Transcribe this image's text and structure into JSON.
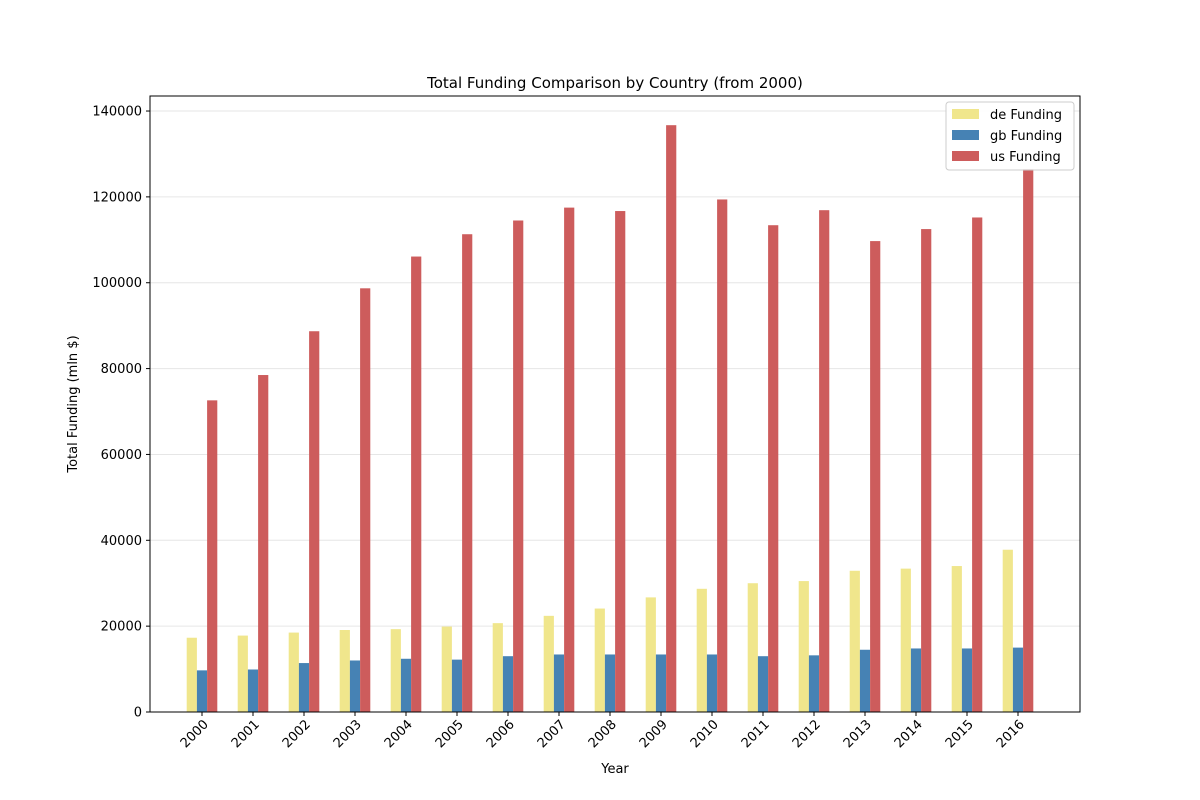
{
  "chart_data": {
    "type": "bar",
    "title": "Total Funding Comparison by Country (from 2000)",
    "xlabel": "Year",
    "ylabel": "Total Funding (mln $)",
    "categories": [
      "2000",
      "2001",
      "2002",
      "2003",
      "2004",
      "2005",
      "2006",
      "2007",
      "2008",
      "2009",
      "2010",
      "2011",
      "2012",
      "2013",
      "2014",
      "2015",
      "2016"
    ],
    "ylim": [
      0,
      143500
    ],
    "yticks": [
      0,
      20000,
      40000,
      60000,
      80000,
      100000,
      120000,
      140000
    ],
    "grid": "y",
    "legend_position": "top-right",
    "series": [
      {
        "name": "de Funding",
        "color": "#f0e68c",
        "values": [
          17300,
          17800,
          18500,
          19100,
          19300,
          19900,
          20700,
          22400,
          24100,
          26700,
          28700,
          30000,
          30500,
          32900,
          33400,
          34000,
          37800
        ]
      },
      {
        "name": "gb Funding",
        "color": "#4682b4",
        "values": [
          9700,
          9900,
          11400,
          12000,
          12400,
          12200,
          13000,
          13400,
          13400,
          13400,
          13400,
          13000,
          13200,
          14500,
          14800,
          14800,
          15000
        ]
      },
      {
        "name": "us Funding",
        "color": "#cd5c5c",
        "values": [
          72600,
          78500,
          88700,
          98700,
          106100,
          111300,
          114500,
          117500,
          116700,
          136700,
          119400,
          113400,
          116900,
          109700,
          112500,
          115200,
          126500
        ]
      }
    ]
  }
}
